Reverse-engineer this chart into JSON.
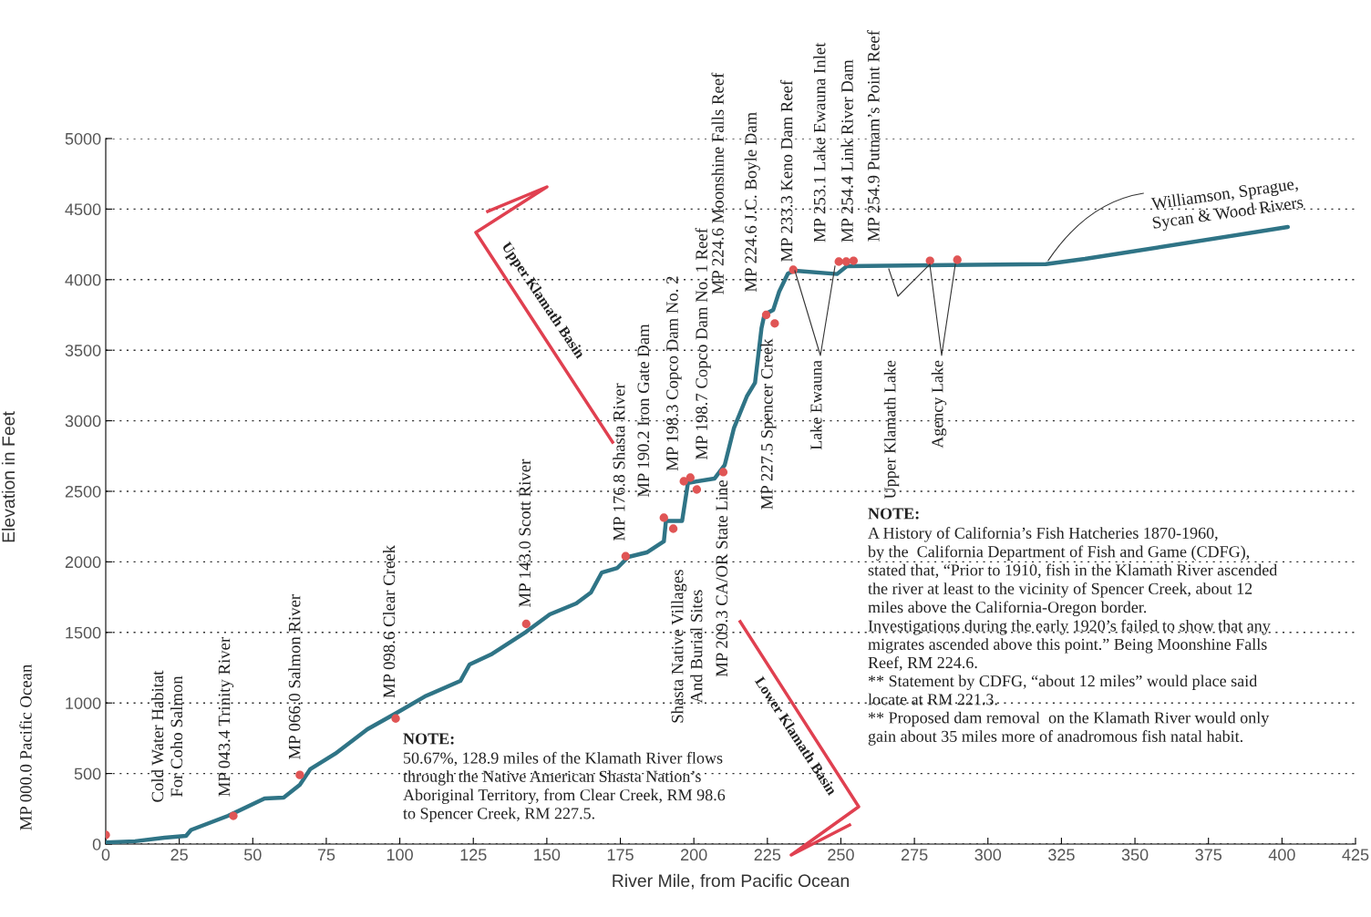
{
  "chart_data": {
    "type": "line",
    "xlabel": "River Mile, from Pacific Ocean",
    "ylabel": "Elevation in Feet",
    "xlim": [
      0,
      425
    ],
    "xticks": [
      0,
      25,
      50,
      75,
      100,
      125,
      150,
      175,
      200,
      225,
      250,
      275,
      300,
      325,
      350,
      375,
      400,
      425
    ],
    "ylim": [
      0,
      5000
    ],
    "yticks": [
      0,
      500,
      1000,
      1500,
      2000,
      2500,
      3000,
      3500,
      4000,
      4500,
      5000
    ],
    "grid": "y",
    "legend": false,
    "series": [
      {
        "color": "#2f7486",
        "x": [
          0,
          10,
          20,
          27.3,
          29,
          41.6,
          54,
          60.5,
          66,
          69.5,
          78,
          89,
          99.5,
          108.5,
          120.6,
          123.7,
          131,
          143,
          151,
          160,
          165,
          168.7,
          174,
          177.7,
          184,
          189.8,
          190.5,
          196,
          198,
          207,
          210.5,
          213.6,
          218,
          220.8,
          223,
          224,
          227,
          229,
          232,
          234.4,
          248.7,
          252,
          319.7,
          333,
          402
        ],
        "values": [
          12,
          20,
          45,
          58,
          100,
          200,
          323,
          330,
          420,
          530,
          640,
          814,
          937,
          1046,
          1156,
          1272,
          1343,
          1505,
          1628,
          1705,
          1783,
          1925,
          1957,
          2035,
          2067,
          2145,
          2290,
          2290,
          2560,
          2590,
          2687,
          2946,
          3172,
          3269,
          3656,
          3753,
          3786,
          3915,
          4044,
          4063,
          4040,
          4096,
          4110,
          4147,
          4373
        ]
      },
      {
        "type": "scatter",
        "color": "#e05555",
        "marker": "circle",
        "x": [
          0,
          43.4,
          66,
          98.6,
          143,
          176.8,
          189.8,
          193,
          196.6,
          198.8,
          201,
          210,
          224.6,
          227.5,
          233.8,
          249.3,
          251.8,
          254.3,
          280.3,
          289.6
        ],
        "values": [
          65,
          200,
          490,
          890,
          1560,
          2040,
          2313,
          2235,
          2571,
          2597,
          2513,
          2636,
          3750,
          3690,
          4070,
          4128,
          4128,
          4134,
          4134,
          4141
        ]
      }
    ],
    "annotations": [
      "MP 000.0 Pacific Ocean",
      "Cold Water Habitat\nFor Coho Salmon",
      {
        "text": "MP 043.4 Trinity River",
        "x": 43.4,
        "y": 200
      },
      {
        "text": "MP 066.0 Salmon River",
        "x": 66,
        "y": 490
      },
      {
        "text": "MP 098.6 Clear Creek",
        "x": 98.6,
        "y": 890
      },
      {
        "text": "MP 143.0 Scott River",
        "x": 143,
        "y": 1560
      },
      {
        "text": "MP 176.8 Shasta River",
        "x": 176.8,
        "y": 2040
      },
      {
        "text": "MP 190.2 Iron Gate Dam",
        "x": 189.8,
        "y": 2313
      },
      {
        "text": "MP 198.3 Copco Dam No. 2",
        "x": 196.6,
        "y": 2571
      },
      {
        "text": "MP 198.7 Copco Dam No. 1 Reef",
        "x": 198.8,
        "y": 2597
      },
      {
        "text": "Shasta Native Villages\nAnd Burial Sites",
        "x": 193,
        "y": 2235
      },
      {
        "text": "MP 209.3 CA/OR State Line",
        "x": 210,
        "y": 2636
      },
      {
        "text": "MP 224.6 Moonshine Falls Reef",
        "x": 224.6,
        "y": 3750
      },
      {
        "text": "MP 224.6 J.C. Boyle Dam",
        "x": 224.6,
        "y": 3750
      },
      {
        "text": "MP 227.5 Spencer Creek",
        "x": 227.5,
        "y": 3690
      },
      {
        "text": "MP 233.3 Keno Dam Reef",
        "x": 233.8,
        "y": 4070
      },
      {
        "text": "MP 253.1 Lake Ewauna Inlet",
        "x": 249.3,
        "y": 4128
      },
      {
        "text": "MP 254.4 Link River Dam",
        "x": 251.8,
        "y": 4128
      },
      {
        "text": "MP 254.9 Putnam’s Point Reef",
        "x": 254.3,
        "y": 4134
      },
      "Lake Ewauna",
      "Upper Klamath Lake",
      "Agency Lake",
      {
        "text": "Williamson, Sprague,\nSycan & Wood Rivers",
        "x": 320,
        "y": 4120
      },
      "Upper Klamath Basin",
      "Lower Klamath Basin",
      "NOTE:",
      "50.67%, 128.9 miles of the Klamath River flows\nthrough the Native American Shasta Nation’s\nAboriginal Territory, from Clear Creek, RM 98.6\nto Spencer Creek, RM 227.5.",
      "NOTE:",
      "A History of California’s Fish Hatcheries 1870-1960,\nby the  California Department of Fish and Game (CDFG),\nstated that, “Prior to 1910, fish in the Klamath River ascended\nthe river at least to the vicinity of Spencer Creek, about 12\nmiles above the California-Oregon border.\nInvestigations during the early 1920’s failed to show that any\nmigrates ascended above this point.” Being Moonshine Falls\nReef, RM 224.6.\n** Statement by CDFG, “about 12 miles” would place said\nlocate at RM 221.3.\n** Proposed dam removal  on the Klamath River would only\ngain about 35 miles more of anadromous fish natal habit."
    ]
  }
}
